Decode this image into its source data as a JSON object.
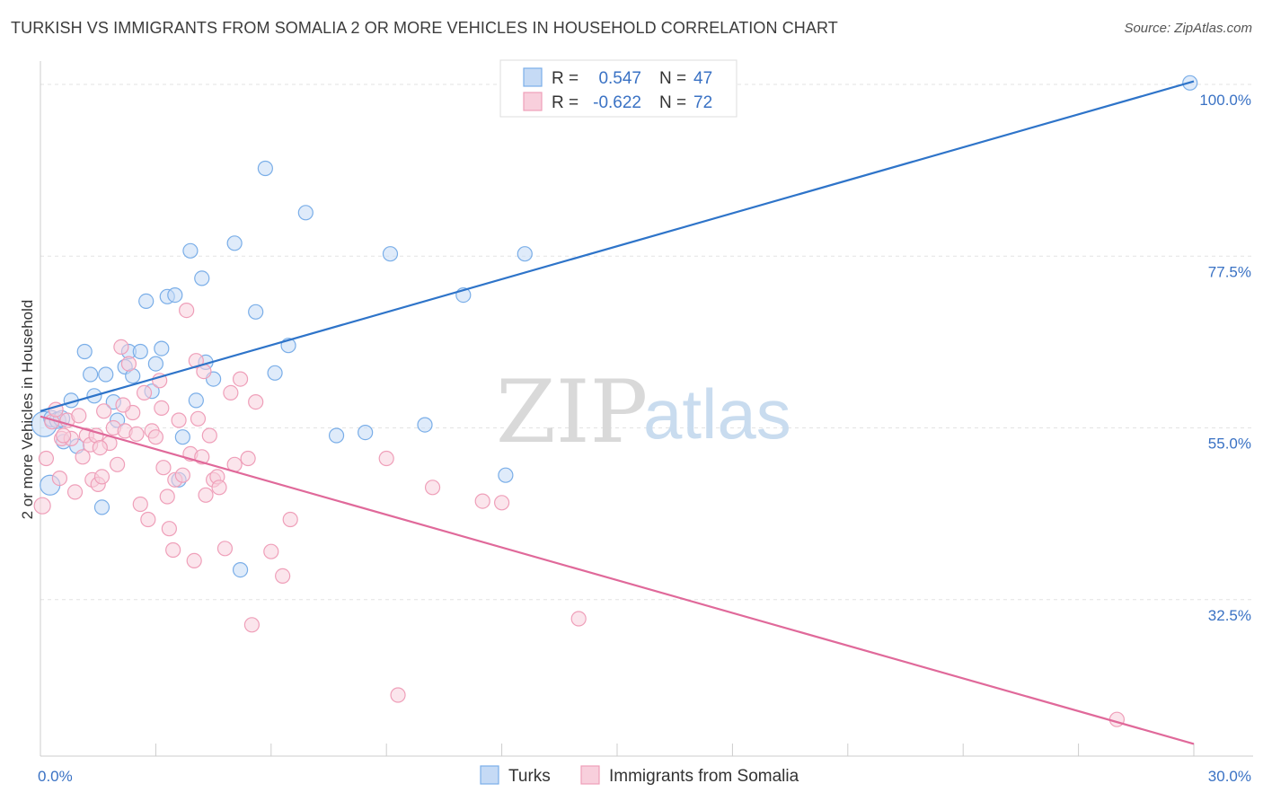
{
  "title": "TURKISH VS IMMIGRANTS FROM SOMALIA 2 OR MORE VEHICLES IN HOUSEHOLD CORRELATION CHART",
  "source": "Source: ZipAtlas.com",
  "watermark": {
    "zip": "ZIP",
    "atlas": "atlas"
  },
  "chart_data": {
    "type": "scatter",
    "xlabel": "",
    "ylabel": "2 or more Vehicles in Household",
    "xlim": [
      0.0,
      30.0
    ],
    "ylim": [
      12.0,
      102.0
    ],
    "x_tick_labels": [
      {
        "value": 0.0,
        "label": "0.0%"
      },
      {
        "value": 30.0,
        "label": "30.0%"
      }
    ],
    "y_tick_labels": [
      {
        "value": 100.0,
        "label": "100.0%"
      },
      {
        "value": 77.5,
        "label": "77.5%"
      },
      {
        "value": 55.0,
        "label": "55.0%"
      },
      {
        "value": 32.5,
        "label": "32.5%"
      }
    ],
    "grid": true,
    "legend_position": "top-center",
    "stats_legend": [
      {
        "r_label": "R = ",
        "r_value": "0.547",
        "n_label": "N = ",
        "n_value": "47",
        "color": "#7aaee8",
        "fill": "#c5daf5"
      },
      {
        "r_label": "R = ",
        "r_value": "-0.622",
        "n_label": "N = ",
        "n_value": "72",
        "color": "#ef9fb9",
        "fill": "#f8cfdc"
      }
    ],
    "series": [
      {
        "name": "Turks",
        "color": "#7aaee8",
        "fill": "#c5daf5",
        "line_color": "#2e74c9",
        "trend": {
          "x": [
            0.0,
            30.0
          ],
          "y": [
            57.2,
            100.4
          ]
        },
        "points": [
          [
            0.1,
            55.5,
            14
          ],
          [
            0.25,
            47.5,
            11
          ],
          [
            0.3,
            56.2,
            9
          ],
          [
            0.45,
            56.0,
            9
          ],
          [
            0.55,
            56.2,
            9
          ],
          [
            0.6,
            53.2,
            8
          ],
          [
            0.8,
            58.6,
            8
          ],
          [
            0.95,
            52.6,
            8
          ],
          [
            1.15,
            65.0,
            8
          ],
          [
            1.3,
            62.0,
            8
          ],
          [
            1.4,
            59.2,
            8
          ],
          [
            1.6,
            44.6,
            8
          ],
          [
            1.7,
            62.0,
            8
          ],
          [
            1.9,
            58.4,
            8
          ],
          [
            2.0,
            56.0,
            8
          ],
          [
            2.2,
            63.0,
            8
          ],
          [
            2.4,
            61.8,
            8
          ],
          [
            2.3,
            65.0,
            8
          ],
          [
            2.6,
            65.0,
            8
          ],
          [
            2.9,
            59.8,
            8
          ],
          [
            3.0,
            63.4,
            8
          ],
          [
            3.15,
            65.4,
            8
          ],
          [
            3.3,
            72.2,
            8
          ],
          [
            2.75,
            71.6,
            8
          ],
          [
            3.5,
            72.4,
            8
          ],
          [
            3.6,
            48.2,
            8
          ],
          [
            3.7,
            53.8,
            8
          ],
          [
            3.9,
            78.2,
            8
          ],
          [
            4.05,
            58.6,
            8
          ],
          [
            4.2,
            74.6,
            8
          ],
          [
            4.3,
            63.6,
            8
          ],
          [
            4.5,
            61.4,
            8
          ],
          [
            5.05,
            79.2,
            8
          ],
          [
            5.2,
            36.4,
            8
          ],
          [
            5.6,
            70.2,
            8
          ],
          [
            5.85,
            89.0,
            8
          ],
          [
            6.1,
            62.2,
            8
          ],
          [
            6.45,
            65.8,
            8
          ],
          [
            6.9,
            83.2,
            8
          ],
          [
            7.7,
            54.0,
            8
          ],
          [
            8.45,
            54.4,
            8
          ],
          [
            9.1,
            77.8,
            8
          ],
          [
            10.0,
            55.4,
            8
          ],
          [
            11.0,
            72.4,
            8
          ],
          [
            12.1,
            48.8,
            8
          ],
          [
            12.6,
            77.8,
            8
          ],
          [
            29.9,
            100.2,
            8
          ]
        ]
      },
      {
        "name": "Immigrants from Somalia",
        "color": "#ef9fb9",
        "fill": "#f8cfdc",
        "line_color": "#e0699a",
        "trend": {
          "x": [
            0.0,
            30.0
          ],
          "y": [
            56.5,
            13.6
          ]
        },
        "points": [
          [
            0.05,
            44.8,
            9
          ],
          [
            0.15,
            51.0,
            8
          ],
          [
            0.3,
            55.8,
            8
          ],
          [
            0.4,
            57.4,
            8
          ],
          [
            0.5,
            48.4,
            8
          ],
          [
            0.55,
            53.6,
            8
          ],
          [
            0.7,
            56.0,
            8
          ],
          [
            0.8,
            53.6,
            8
          ],
          [
            0.9,
            46.6,
            8
          ],
          [
            1.0,
            56.6,
            8
          ],
          [
            1.1,
            51.2,
            8
          ],
          [
            1.2,
            54.0,
            8
          ],
          [
            1.3,
            52.8,
            8
          ],
          [
            1.35,
            48.2,
            8
          ],
          [
            1.45,
            54.0,
            8
          ],
          [
            1.5,
            47.6,
            8
          ],
          [
            1.6,
            48.6,
            8
          ],
          [
            1.65,
            57.2,
            8
          ],
          [
            1.8,
            53.0,
            8
          ],
          [
            1.9,
            55.0,
            8
          ],
          [
            2.0,
            50.2,
            8
          ],
          [
            2.1,
            65.6,
            8
          ],
          [
            2.2,
            54.6,
            8
          ],
          [
            2.3,
            63.4,
            8
          ],
          [
            2.4,
            57.0,
            8
          ],
          [
            2.5,
            54.2,
            8
          ],
          [
            2.6,
            45.0,
            8
          ],
          [
            2.7,
            59.6,
            8
          ],
          [
            2.8,
            43.0,
            8
          ],
          [
            2.9,
            54.6,
            8
          ],
          [
            3.0,
            53.8,
            8
          ],
          [
            3.1,
            61.2,
            8
          ],
          [
            3.2,
            49.8,
            8
          ],
          [
            3.3,
            46.0,
            8
          ],
          [
            3.35,
            41.8,
            8
          ],
          [
            3.45,
            39.0,
            8
          ],
          [
            3.5,
            48.2,
            8
          ],
          [
            3.6,
            56.0,
            8
          ],
          [
            3.7,
            48.8,
            8
          ],
          [
            3.8,
            70.4,
            8
          ],
          [
            3.9,
            51.6,
            8
          ],
          [
            4.0,
            37.6,
            8
          ],
          [
            4.05,
            63.8,
            8
          ],
          [
            4.1,
            56.2,
            8
          ],
          [
            4.2,
            51.2,
            8
          ],
          [
            4.3,
            46.2,
            8
          ],
          [
            4.4,
            54.0,
            8
          ],
          [
            4.5,
            48.2,
            8
          ],
          [
            4.6,
            48.6,
            8
          ],
          [
            4.65,
            47.2,
            8
          ],
          [
            4.8,
            39.2,
            8
          ],
          [
            4.95,
            59.6,
            8
          ],
          [
            5.05,
            50.2,
            8
          ],
          [
            5.2,
            61.4,
            8
          ],
          [
            5.4,
            51.0,
            8
          ],
          [
            5.5,
            29.2,
            8
          ],
          [
            5.6,
            58.4,
            8
          ],
          [
            6.0,
            38.8,
            8
          ],
          [
            6.3,
            35.6,
            8
          ],
          [
            6.5,
            43.0,
            8
          ],
          [
            9.0,
            51.0,
            8
          ],
          [
            9.3,
            20.0,
            8
          ],
          [
            10.2,
            47.2,
            8
          ],
          [
            11.5,
            45.4,
            8
          ],
          [
            12.0,
            45.2,
            8
          ],
          [
            14.0,
            30.0,
            8
          ],
          [
            28.0,
            16.8,
            8
          ],
          [
            0.6,
            54.0,
            8
          ],
          [
            1.55,
            52.4,
            8
          ],
          [
            2.15,
            58.0,
            8
          ],
          [
            3.15,
            57.6,
            8
          ],
          [
            4.25,
            62.4,
            8
          ]
        ]
      }
    ]
  },
  "bottom_legend": [
    {
      "label": "Turks",
      "color": "#7aaee8",
      "fill": "#c5daf5"
    },
    {
      "label": "Immigrants from Somalia",
      "color": "#ef9fb9",
      "fill": "#f8cfdc"
    }
  ]
}
